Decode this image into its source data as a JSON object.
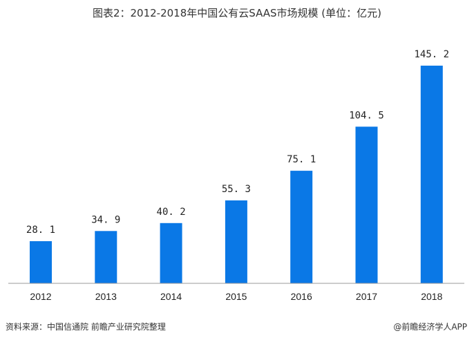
{
  "title": "图表2：2012-2018年中国公有云SAAS市场规模 (单位：亿元)",
  "source": "资料来源：中国信通院 前瞻产业研究院整理",
  "brand": "@前瞻经济学人APP",
  "colors": {
    "bar": "#0a78e6",
    "axis": "#999999"
  },
  "chart_data": {
    "type": "bar",
    "title": "图表2：2012-2018年中国公有云SAAS市场规模 (单位：亿元)",
    "categories": [
      "2012",
      "2013",
      "2014",
      "2015",
      "2016",
      "2017",
      "2018"
    ],
    "values": [
      28.1,
      34.9,
      40.2,
      55.3,
      75.1,
      104.5,
      145.2
    ],
    "labels": [
      "28. 1",
      "34. 9",
      "40. 2",
      "55. 3",
      "75. 1",
      "104. 5",
      "145. 2"
    ],
    "xlabel": "",
    "ylabel": "",
    "ylim": [
      0,
      145.2
    ],
    "grid": false,
    "legend": "none"
  }
}
